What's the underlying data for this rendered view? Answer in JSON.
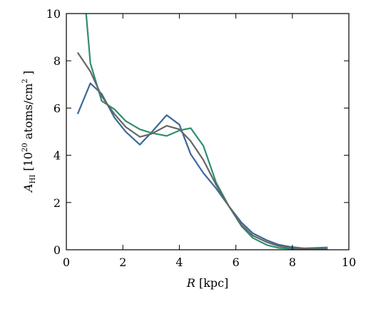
{
  "chart_data": {
    "type": "line",
    "title": "",
    "xlabel": {
      "italic": "R",
      "rest": " [kpc]"
    },
    "ylabel": {
      "base": "A",
      "subscript": "HI",
      "rest_before_sup": " [10",
      "superscript": "20",
      "rest_middle": " atoms/cm",
      "superscript2": "2",
      "rest_end": " ]"
    },
    "xlim": [
      0,
      10
    ],
    "ylim": [
      0,
      10
    ],
    "xticks": [
      0,
      2,
      4,
      6,
      8,
      10
    ],
    "yticks": [
      0,
      2,
      4,
      6,
      8,
      10
    ],
    "grid": false,
    "series": [
      {
        "color": "#3a6899",
        "x": [
          0.4,
          0.85,
          1.25,
          1.7,
          2.1,
          2.6,
          3.0,
          3.55,
          4.0,
          4.4,
          4.85,
          5.3,
          5.75,
          6.2,
          6.6,
          7.1,
          7.5,
          7.95,
          8.4,
          8.85,
          9.25
        ],
        "y": [
          5.75,
          7.05,
          6.6,
          5.6,
          5.0,
          4.45,
          4.95,
          5.7,
          5.3,
          4.05,
          3.25,
          2.6,
          1.85,
          1.15,
          0.7,
          0.4,
          0.22,
          0.12,
          0.06,
          0.04,
          0.03
        ]
      },
      {
        "color": "#2f8f6b",
        "x": [
          0.7,
          0.85,
          1.25,
          1.7,
          2.1,
          2.6,
          3.0,
          3.55,
          4.0,
          4.4,
          4.85,
          5.3,
          5.75,
          6.2,
          6.6,
          7.1,
          7.5,
          7.95,
          8.4,
          8.85,
          9.25
        ],
        "y": [
          10.0,
          7.9,
          6.3,
          5.95,
          5.45,
          5.1,
          4.95,
          4.82,
          5.05,
          5.15,
          4.4,
          2.85,
          1.85,
          1.0,
          0.5,
          0.2,
          0.08,
          0.04,
          0.02,
          0.01,
          0.01
        ]
      },
      {
        "color": "#666666",
        "x": [
          0.4,
          0.85,
          1.25,
          1.7,
          2.1,
          2.6,
          3.0,
          3.55,
          4.0,
          4.4,
          4.85,
          5.3,
          5.75,
          6.2,
          6.6,
          7.1,
          7.5,
          7.95,
          8.4,
          8.85,
          9.25
        ],
        "y": [
          8.35,
          7.55,
          6.5,
          5.75,
          5.2,
          4.78,
          4.9,
          5.25,
          5.1,
          4.6,
          3.8,
          2.75,
          1.85,
          1.05,
          0.6,
          0.32,
          0.16,
          0.08,
          0.06,
          0.08,
          0.1
        ]
      }
    ]
  }
}
